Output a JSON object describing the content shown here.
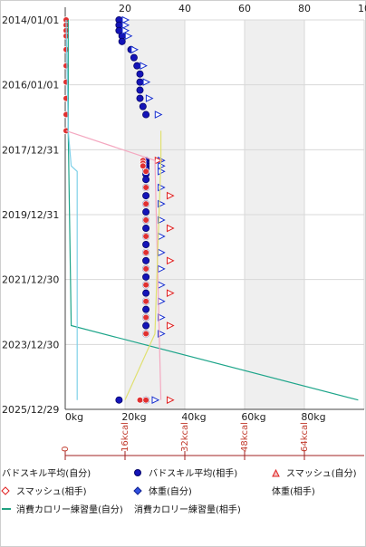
{
  "chart_data": {
    "type": "scatter",
    "orientation": "time-vertical",
    "y_date_ticks": [
      "2014/01/01",
      "2016/01/01",
      "2017/12/31",
      "2019/12/31",
      "2021/12/30",
      "2023/12/30",
      "2025/12/29"
    ],
    "y_range": [
      "2014/01/01",
      "2025/12/29"
    ],
    "x_axis_top": {
      "ticks": [
        "20",
        "40",
        "60",
        "80",
        "10"
      ],
      "range": [
        0,
        100
      ]
    },
    "x_axis_bottom": {
      "ticks": [
        "0kg",
        "20kg",
        "40kg",
        "60kg",
        "80kg"
      ],
      "range": [
        0,
        100
      ]
    },
    "x_axis_kcal": {
      "ticks": [
        "0",
        "16kcal",
        "32kcal",
        "48kcal",
        "64kcal"
      ]
    },
    "grid": true,
    "legend_position": "bottom",
    "legend": [
      {
        "label": "バドスキル平均(自分)",
        "marker": "none",
        "color": "#000000"
      },
      {
        "label": "バドスキル平均(相手)",
        "marker": "circle",
        "color": "#1010c0"
      },
      {
        "label": "スマッシュ(自分)",
        "marker": "triangle",
        "color": "#e02020"
      },
      {
        "label": "スマッシュ(相手)",
        "marker": "diamond-open",
        "color": "#e02020"
      },
      {
        "label": "体重(自分)",
        "marker": "diamond",
        "color": "#1020d0"
      },
      {
        "label": "体重(相手)",
        "marker": "none",
        "color": "#000000"
      },
      {
        "label": "消費カロリー練習量(自分)",
        "marker": "line",
        "color": "#20a080"
      },
      {
        "label": "消費カロリー練習量(相手)",
        "marker": "none",
        "color": "#000000"
      }
    ],
    "series": [
      {
        "name": "バドスキル平均(相手)",
        "marker": "circle-blue",
        "points": [
          [
            "2014/01/01",
            18
          ],
          [
            "2014/03/01",
            18
          ],
          [
            "2014/05/01",
            18
          ],
          [
            "2014/07/01",
            19
          ],
          [
            "2014/09/01",
            19
          ],
          [
            "2014/12/01",
            22
          ],
          [
            "2015/03/01",
            23
          ],
          [
            "2015/06/01",
            24
          ],
          [
            "2015/09/01",
            25
          ],
          [
            "2015/12/01",
            25
          ],
          [
            "2016/03/01",
            25
          ],
          [
            "2016/06/01",
            25
          ],
          [
            "2016/09/01",
            26
          ],
          [
            "2016/12/01",
            27
          ],
          [
            "2018/05/01",
            27
          ],
          [
            "2018/06/01",
            27
          ],
          [
            "2018/07/01",
            27
          ],
          [
            "2018/08/01",
            27
          ],
          [
            "2018/09/01",
            27
          ],
          [
            "2018/10/01",
            27
          ],
          [
            "2018/12/01",
            27
          ],
          [
            "2019/03/01",
            27
          ],
          [
            "2019/06/01",
            27
          ],
          [
            "2019/09/01",
            27
          ],
          [
            "2019/12/01",
            27
          ],
          [
            "2020/03/01",
            27
          ],
          [
            "2020/06/01",
            27
          ],
          [
            "2020/09/01",
            27
          ],
          [
            "2020/12/01",
            27
          ],
          [
            "2021/03/01",
            27
          ],
          [
            "2021/06/01",
            27
          ],
          [
            "2021/09/01",
            27
          ],
          [
            "2021/12/01",
            27
          ],
          [
            "2022/03/01",
            27
          ],
          [
            "2022/06/01",
            27
          ],
          [
            "2022/09/01",
            27
          ],
          [
            "2022/12/01",
            27
          ],
          [
            "2023/03/01",
            27
          ],
          [
            "2023/06/01",
            27
          ],
          [
            "2023/09/01",
            27
          ],
          [
            "2025/09/15",
            18
          ],
          [
            "2025/09/15",
            27
          ]
        ]
      },
      {
        "name": "スマッシュ(自分)",
        "marker": "triangle-open-blue",
        "points": [
          [
            "2014/01/01",
            20
          ],
          [
            "2014/03/01",
            20
          ],
          [
            "2014/05/01",
            20
          ],
          [
            "2014/07/01",
            21
          ],
          [
            "2014/12/01",
            23
          ],
          [
            "2015/06/01",
            26
          ],
          [
            "2015/12/01",
            27
          ],
          [
            "2016/06/01",
            28
          ],
          [
            "2016/12/01",
            31
          ],
          [
            "2018/05/01",
            32
          ],
          [
            "2018/07/01",
            32
          ],
          [
            "2018/09/01",
            32
          ],
          [
            "2019/03/01",
            32
          ],
          [
            "2019/09/01",
            32
          ],
          [
            "2020/03/01",
            32
          ],
          [
            "2020/09/01",
            32
          ],
          [
            "2021/03/01",
            32
          ],
          [
            "2021/09/01",
            32
          ],
          [
            "2022/03/01",
            32
          ],
          [
            "2022/09/01",
            32
          ],
          [
            "2023/03/01",
            32
          ],
          [
            "2023/09/01",
            32
          ],
          [
            "2025/09/15",
            30
          ]
        ]
      },
      {
        "name": "スマッシュ(相手)",
        "marker": "triangle-open-red",
        "points": [
          [
            "2018/05/01",
            31
          ],
          [
            "2019/06/01",
            35
          ],
          [
            "2020/06/01",
            35
          ],
          [
            "2021/06/01",
            35
          ],
          [
            "2022/06/01",
            35
          ],
          [
            "2023/06/01",
            35
          ],
          [
            "2025/09/15",
            35
          ]
        ]
      },
      {
        "name": "体重(自分)",
        "marker": "circle-red",
        "points": [
          [
            "2014/01/01",
            0
          ],
          [
            "2014/03/01",
            0
          ],
          [
            "2014/05/01",
            0
          ],
          [
            "2014/07/01",
            0
          ],
          [
            "2014/12/01",
            0
          ],
          [
            "2015/06/01",
            0
          ],
          [
            "2015/12/01",
            0
          ],
          [
            "2016/06/01",
            0
          ],
          [
            "2016/12/01",
            0
          ],
          [
            "2017/06/01",
            0
          ],
          [
            "2018/05/01",
            26
          ],
          [
            "2018/06/01",
            26
          ],
          [
            "2018/07/01",
            26
          ],
          [
            "2018/09/01",
            27
          ],
          [
            "2019/03/01",
            27
          ],
          [
            "2019/09/01",
            27
          ],
          [
            "2020/03/01",
            27
          ],
          [
            "2020/09/01",
            27
          ],
          [
            "2021/03/01",
            27
          ],
          [
            "2021/09/01",
            27
          ],
          [
            "2022/03/01",
            27
          ],
          [
            "2022/09/01",
            27
          ],
          [
            "2023/03/01",
            27
          ],
          [
            "2023/09/01",
            27
          ],
          [
            "2025/09/15",
            25
          ],
          [
            "2025/09/15",
            27
          ]
        ]
      },
      {
        "name": "消費カロリー練習量(自分)",
        "marker": "line-teal",
        "points": [
          [
            "2014/01/01",
            1
          ],
          [
            "2017/06/01",
            1
          ],
          [
            "2023/06/01",
            2
          ],
          [
            "2025/09/15",
            98
          ]
        ]
      },
      {
        "name": "消費カロリー練習量(相手)",
        "marker": "line-lightblue",
        "points": [
          [
            "2014/01/01",
            0
          ],
          [
            "2017/06/01",
            1
          ],
          [
            "2018/07/01",
            2
          ],
          [
            "2018/09/01",
            4
          ],
          [
            "2025/09/15",
            4
          ]
        ]
      },
      {
        "name": "体重(相手)",
        "marker": "line-lightpink",
        "points": [
          [
            "2017/06/01",
            0
          ],
          [
            "2018/05/01",
            30
          ],
          [
            "2025/09/15",
            32
          ]
        ]
      },
      {
        "name": "バドスキル平均(自分)",
        "marker": "line-yellow",
        "points": [
          [
            "2017/06/01",
            32
          ],
          [
            "2018/05/01",
            32
          ],
          [
            "2023/09/01",
            30
          ],
          [
            "2025/09/15",
            20
          ]
        ]
      }
    ]
  }
}
